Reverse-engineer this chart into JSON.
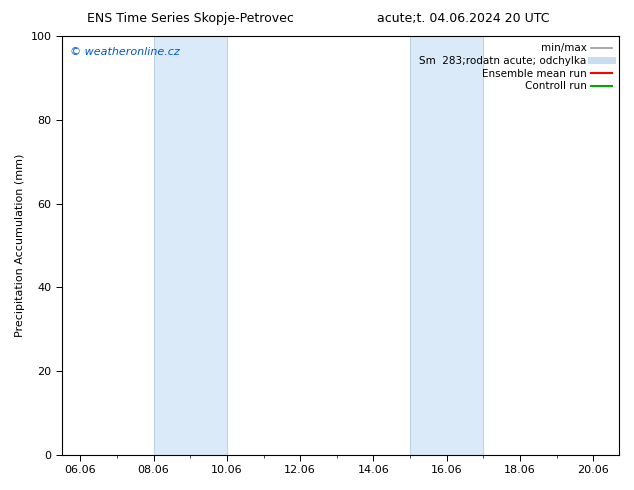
{
  "title_left": "ENS Time Series Skopje-Petrovec",
  "title_right": "acute;t. 04.06.2024 20 UTC",
  "ylabel": "Precipitation Accumulation (mm)",
  "xlim_start": 5.5,
  "xlim_end": 20.7,
  "ylim": [
    0,
    100
  ],
  "yticks": [
    0,
    20,
    40,
    60,
    80,
    100
  ],
  "xtick_labels": [
    "06.06",
    "08.06",
    "10.06",
    "12.06",
    "14.06",
    "16.06",
    "18.06",
    "20.06"
  ],
  "xtick_positions": [
    6.0,
    8.0,
    10.0,
    12.0,
    14.0,
    16.0,
    18.0,
    20.0
  ],
  "shaded_regions": [
    {
      "x_start": 8.0,
      "x_end": 10.0
    },
    {
      "x_start": 15.0,
      "x_end": 17.0
    }
  ],
  "shaded_color": "#daeaf8",
  "shaded_edge_color": "#b0cce0",
  "watermark_text": "© weatheronline.cz",
  "watermark_color": "#0055cc",
  "legend_entries": [
    {
      "label": "min/max",
      "color": "#999999",
      "lw": 1.2
    },
    {
      "label": "Sm  283;rodatn acute; odchylka",
      "color": "#c8ddf0",
      "lw": 5
    },
    {
      "label": "Ensemble mean run",
      "color": "#ff0000",
      "lw": 1.5
    },
    {
      "label": "Controll run",
      "color": "#00aa00",
      "lw": 1.5
    }
  ],
  "background_color": "#ffffff",
  "font_size_title": 9,
  "font_size_ticks": 8,
  "font_size_ylabel": 8,
  "font_size_legend": 7.5,
  "font_size_watermark": 8
}
